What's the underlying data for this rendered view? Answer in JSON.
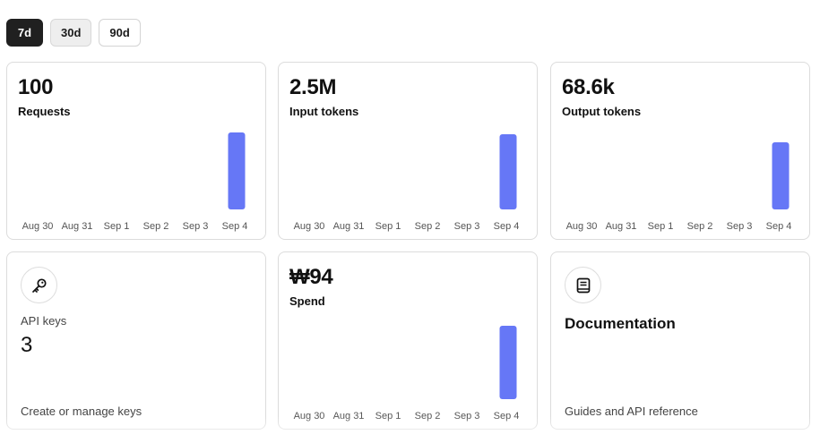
{
  "ranges": [
    "7d",
    "30d",
    "90d"
  ],
  "range_active": "7d",
  "colors": {
    "bar": "#6677f6",
    "active_bg": "#202020"
  },
  "cards": {
    "requests": {
      "value": "100",
      "label": "Requests"
    },
    "input_tokens": {
      "value": "2.5M",
      "label": "Input tokens"
    },
    "output_tokens": {
      "value": "68.6k",
      "label": "Output tokens"
    },
    "api_keys": {
      "icon": "key-icon",
      "label": "API keys",
      "count": "3",
      "link": "Create or manage keys"
    },
    "spend": {
      "value": "₩94",
      "label": "Spend"
    },
    "documentation": {
      "icon": "book-icon",
      "title": "Documentation",
      "link": "Guides and API reference"
    }
  },
  "chart_data": [
    {
      "type": "bar",
      "title": "",
      "categories": [
        "Aug 30",
        "Aug 31",
        "Sep 1",
        "Sep 2",
        "Sep 3",
        "Sep 4"
      ],
      "series": [
        {
          "name": "Requests",
          "values": [
            0,
            0,
            0,
            0,
            0,
            100
          ]
        }
      ],
      "ylim": [
        0,
        100
      ]
    },
    {
      "type": "bar",
      "title": "",
      "categories": [
        "Aug 30",
        "Aug 31",
        "Sep 1",
        "Sep 2",
        "Sep 3",
        "Sep 4"
      ],
      "series": [
        {
          "name": "Input tokens",
          "values": [
            0,
            0,
            0,
            0,
            0,
            2500000
          ]
        }
      ],
      "ylim": [
        0,
        2500000
      ]
    },
    {
      "type": "bar",
      "title": "",
      "categories": [
        "Aug 30",
        "Aug 31",
        "Sep 1",
        "Sep 2",
        "Sep 3",
        "Sep 4"
      ],
      "series": [
        {
          "name": "Output tokens",
          "values": [
            0,
            0,
            0,
            0,
            0,
            68600
          ]
        }
      ],
      "ylim": [
        0,
        68600
      ]
    },
    {
      "type": "bar",
      "title": "",
      "categories": [
        "Aug 30",
        "Aug 31",
        "Sep 1",
        "Sep 2",
        "Sep 3",
        "Sep 4"
      ],
      "series": [
        {
          "name": "Spend",
          "values": [
            0,
            0,
            0,
            0,
            0,
            94
          ]
        }
      ],
      "ylim": [
        0,
        94
      ]
    }
  ]
}
